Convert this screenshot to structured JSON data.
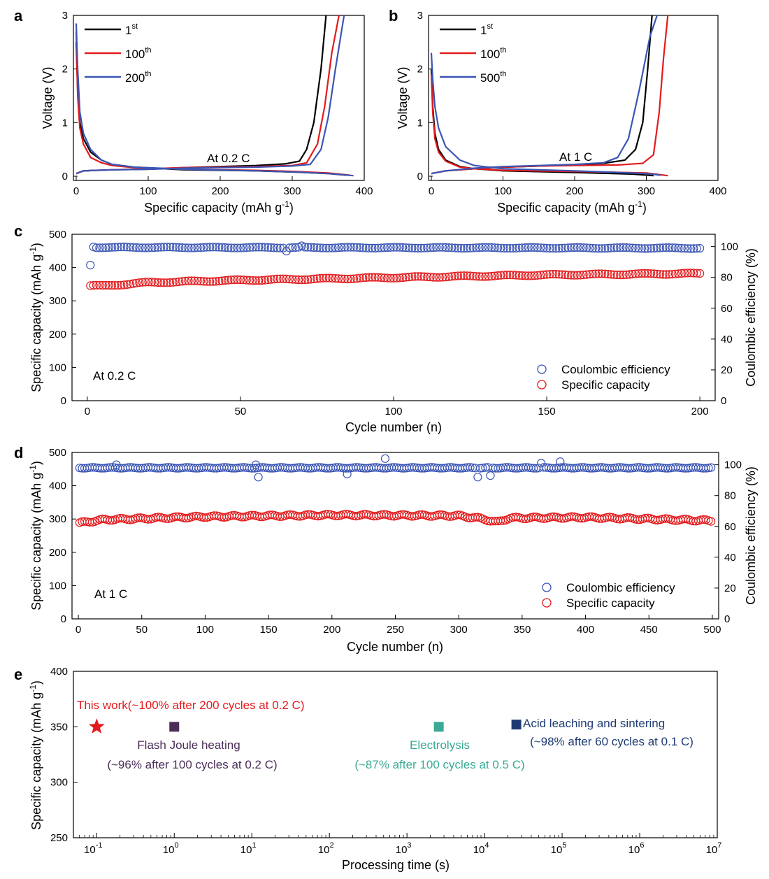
{
  "chart_data": [
    {
      "id": "a",
      "panel_label": "a",
      "type": "line",
      "xlabel": "Specific capacity (mAh g",
      "xlabel_sup": "-1",
      "xlabel_end": ")",
      "ylabel": "Voltage (V)",
      "xlim": [
        0,
        400
      ],
      "ylim": [
        0,
        3
      ],
      "xticks": [
        0,
        100,
        200,
        300,
        400
      ],
      "yticks": [
        0,
        1,
        2,
        3
      ],
      "annotation": "At 0.2 C",
      "series": [
        {
          "name": "1",
          "sup": "st",
          "color": "#000000",
          "discharge": [
            [
              0,
              2.5
            ],
            [
              2,
              1.6
            ],
            [
              5,
              1.0
            ],
            [
              10,
              0.7
            ],
            [
              20,
              0.45
            ],
            [
              35,
              0.3
            ],
            [
              50,
              0.22
            ],
            [
              80,
              0.17
            ],
            [
              150,
              0.12
            ],
            [
              250,
              0.1
            ],
            [
              300,
              0.08
            ],
            [
              350,
              0.05
            ],
            [
              375,
              0.02
            ]
          ],
          "charge": [
            [
              0,
              0.05
            ],
            [
              10,
              0.1
            ],
            [
              50,
              0.12
            ],
            [
              100,
              0.13
            ],
            [
              150,
              0.16
            ],
            [
              200,
              0.18
            ],
            [
              250,
              0.2
            ],
            [
              290,
              0.23
            ],
            [
              310,
              0.28
            ],
            [
              320,
              0.5
            ],
            [
              330,
              1.0
            ],
            [
              340,
              2.0
            ],
            [
              347,
              3.0
            ]
          ]
        },
        {
          "name": "100",
          "sup": "th",
          "color": "#e31a1c",
          "discharge": [
            [
              0,
              2.7
            ],
            [
              2,
              1.5
            ],
            [
              5,
              0.9
            ],
            [
              10,
              0.6
            ],
            [
              20,
              0.35
            ],
            [
              35,
              0.25
            ],
            [
              50,
              0.2
            ],
            [
              80,
              0.16
            ],
            [
              150,
              0.13
            ],
            [
              250,
              0.11
            ],
            [
              300,
              0.09
            ],
            [
              350,
              0.06
            ],
            [
              380,
              0.02
            ]
          ],
          "charge": [
            [
              0,
              0.05
            ],
            [
              10,
              0.1
            ],
            [
              50,
              0.12
            ],
            [
              100,
              0.14
            ],
            [
              150,
              0.16
            ],
            [
              200,
              0.17
            ],
            [
              250,
              0.18
            ],
            [
              300,
              0.2
            ],
            [
              320,
              0.25
            ],
            [
              335,
              0.6
            ],
            [
              345,
              1.3
            ],
            [
              355,
              2.3
            ],
            [
              365,
              3.0
            ]
          ]
        },
        {
          "name": "200",
          "sup": "th",
          "color": "#3b55b4",
          "discharge": [
            [
              0,
              2.85
            ],
            [
              2,
              2.0
            ],
            [
              5,
              1.2
            ],
            [
              10,
              0.8
            ],
            [
              20,
              0.5
            ],
            [
              35,
              0.3
            ],
            [
              50,
              0.22
            ],
            [
              80,
              0.17
            ],
            [
              150,
              0.13
            ],
            [
              250,
              0.1
            ],
            [
              300,
              0.08
            ],
            [
              350,
              0.05
            ],
            [
              385,
              0.01
            ]
          ],
          "charge": [
            [
              0,
              0.05
            ],
            [
              10,
              0.1
            ],
            [
              50,
              0.12
            ],
            [
              100,
              0.13
            ],
            [
              150,
              0.15
            ],
            [
              200,
              0.16
            ],
            [
              250,
              0.17
            ],
            [
              300,
              0.19
            ],
            [
              325,
              0.22
            ],
            [
              340,
              0.5
            ],
            [
              350,
              1.1
            ],
            [
              360,
              2.0
            ],
            [
              372,
              3.0
            ]
          ]
        }
      ]
    },
    {
      "id": "b",
      "panel_label": "b",
      "type": "line",
      "xlabel": "Specific capacity (mAh g",
      "xlabel_sup": "-1",
      "xlabel_end": ")",
      "ylabel": "Voltage (V)",
      "xlim": [
        0,
        400
      ],
      "ylim": [
        0,
        3
      ],
      "xticks": [
        0,
        100,
        200,
        300,
        400
      ],
      "yticks": [
        0,
        1,
        2,
        3
      ],
      "annotation": "At 1 C",
      "series": [
        {
          "name": "1",
          "sup": "st",
          "color": "#000000",
          "discharge": [
            [
              0,
              2.0
            ],
            [
              2,
              1.3
            ],
            [
              5,
              0.8
            ],
            [
              10,
              0.5
            ],
            [
              20,
              0.3
            ],
            [
              40,
              0.18
            ],
            [
              60,
              0.14
            ],
            [
              100,
              0.1
            ],
            [
              200,
              0.07
            ],
            [
              280,
              0.04
            ],
            [
              310,
              0.01
            ]
          ],
          "charge": [
            [
              0,
              0.05
            ],
            [
              20,
              0.1
            ],
            [
              60,
              0.14
            ],
            [
              100,
              0.17
            ],
            [
              150,
              0.19
            ],
            [
              200,
              0.21
            ],
            [
              240,
              0.24
            ],
            [
              270,
              0.3
            ],
            [
              285,
              0.5
            ],
            [
              295,
              1.0
            ],
            [
              302,
              2.0
            ],
            [
              308,
              3.0
            ]
          ]
        },
        {
          "name": "100",
          "sup": "th",
          "color": "#e31a1c",
          "discharge": [
            [
              0,
              1.9
            ],
            [
              2,
              1.2
            ],
            [
              5,
              0.7
            ],
            [
              10,
              0.45
            ],
            [
              20,
              0.28
            ],
            [
              40,
              0.17
            ],
            [
              60,
              0.14
            ],
            [
              100,
              0.11
            ],
            [
              200,
              0.09
            ],
            [
              300,
              0.06
            ],
            [
              330,
              0.01
            ]
          ],
          "charge": [
            [
              0,
              0.05
            ],
            [
              20,
              0.1
            ],
            [
              60,
              0.14
            ],
            [
              100,
              0.17
            ],
            [
              150,
              0.19
            ],
            [
              200,
              0.2
            ],
            [
              260,
              0.21
            ],
            [
              295,
              0.24
            ],
            [
              310,
              0.4
            ],
            [
              318,
              1.2
            ],
            [
              324,
              2.2
            ],
            [
              330,
              3.0
            ]
          ]
        },
        {
          "name": "500",
          "sup": "th",
          "color": "#3b55b4",
          "discharge": [
            [
              0,
              2.3
            ],
            [
              2,
              1.8
            ],
            [
              5,
              1.3
            ],
            [
              10,
              0.9
            ],
            [
              20,
              0.55
            ],
            [
              40,
              0.3
            ],
            [
              60,
              0.2
            ],
            [
              100,
              0.14
            ],
            [
              200,
              0.1
            ],
            [
              300,
              0.05
            ],
            [
              320,
              0.02
            ]
          ],
          "charge": [
            [
              0,
              0.05
            ],
            [
              20,
              0.1
            ],
            [
              60,
              0.15
            ],
            [
              100,
              0.18
            ],
            [
              150,
              0.2
            ],
            [
              200,
              0.22
            ],
            [
              240,
              0.25
            ],
            [
              260,
              0.35
            ],
            [
              275,
              0.7
            ],
            [
              290,
              1.6
            ],
            [
              305,
              2.6
            ],
            [
              315,
              3.0
            ]
          ]
        }
      ]
    },
    {
      "id": "c",
      "panel_label": "c",
      "type": "scatter",
      "xlabel": "Cycle number (n)",
      "ylabel": "Specific capacity (mAh g",
      "ylabel_sup": "-1",
      "ylabel_end": ")",
      "y2label": "Coulombic efficiency (%)",
      "xlim": [
        -5,
        205
      ],
      "ylim": [
        0,
        500
      ],
      "y2lim": [
        0,
        108
      ],
      "xticks": [
        0,
        50,
        100,
        150,
        200
      ],
      "yticks": [
        0,
        100,
        200,
        300,
        400,
        500
      ],
      "y2ticks": [
        0,
        20,
        40,
        60,
        80,
        100
      ],
      "annotation": "At 0.2 C",
      "legend": [
        {
          "label": "Coulombic efficiency",
          "color": "#3b55b4"
        },
        {
          "label": "Specific capacity",
          "color": "#e31a1c"
        }
      ],
      "cycles": 200,
      "capacity_trend": [
        [
          1,
          345
        ],
        [
          5,
          345
        ],
        [
          20,
          355
        ],
        [
          50,
          362
        ],
        [
          100,
          370
        ],
        [
          150,
          378
        ],
        [
          200,
          382
        ]
      ],
      "ce_trend": [
        [
          1,
          88
        ],
        [
          2,
          99.5
        ],
        [
          200,
          99
        ]
      ],
      "ce_outliers": [
        [
          1,
          88
        ],
        [
          2,
          99.8
        ],
        [
          65,
          97
        ],
        [
          70,
          100.5
        ]
      ]
    },
    {
      "id": "d",
      "panel_label": "d",
      "type": "scatter",
      "xlabel": "Cycle number (n)",
      "ylabel": "Specific capacity (mAh g",
      "ylabel_sup": "-1",
      "ylabel_end": ")",
      "y2label": "Coulombic efficiency (%)",
      "xlim": [
        -5,
        505
      ],
      "ylim": [
        0,
        500
      ],
      "y2lim": [
        0,
        108
      ],
      "xticks": [
        0,
        50,
        100,
        150,
        200,
        250,
        300,
        350,
        400,
        450,
        500
      ],
      "yticks": [
        0,
        100,
        200,
        300,
        400,
        500
      ],
      "y2ticks": [
        0,
        20,
        40,
        60,
        80,
        100
      ],
      "annotation": "At 1 C",
      "legend": [
        {
          "label": "Coulombic efficiency",
          "color": "#3b55b4"
        },
        {
          "label": "Specific capacity",
          "color": "#e31a1c"
        }
      ],
      "cycles": 500,
      "capacity_trend": [
        [
          1,
          288
        ],
        [
          20,
          298
        ],
        [
          100,
          307
        ],
        [
          200,
          312
        ],
        [
          300,
          310
        ],
        [
          320,
          300
        ],
        [
          330,
          290
        ],
        [
          340,
          303
        ],
        [
          400,
          305
        ],
        [
          450,
          300
        ],
        [
          500,
          295
        ]
      ],
      "ce_trend": [
        [
          1,
          98
        ],
        [
          500,
          98
        ]
      ],
      "ce_outliers": [
        [
          30,
          100
        ],
        [
          140,
          100
        ],
        [
          142,
          92
        ],
        [
          212,
          94
        ],
        [
          242,
          104
        ],
        [
          315,
          92
        ],
        [
          325,
          93
        ],
        [
          365,
          101
        ],
        [
          380,
          102
        ]
      ]
    },
    {
      "id": "e",
      "panel_label": "e",
      "type": "scatter",
      "xlabel": "Processing time (s)",
      "ylabel": "Specific capacity (mAh g",
      "ylabel_sup": "-1",
      "ylabel_end": ")",
      "xscale": "log",
      "xlim_exp": [
        -1.3,
        7
      ],
      "ylim": [
        250,
        400
      ],
      "xtick_exponents": [
        -1,
        0,
        1,
        2,
        3,
        4,
        5,
        6,
        7
      ],
      "xtick_base": "10",
      "yticks": [
        250,
        300,
        350,
        400
      ],
      "points": [
        {
          "label": "This work(~100% after 200 cycles at 0.2 C)",
          "sublabel": "",
          "x_exp": -1,
          "y": 350,
          "marker": "star",
          "color": "#e31a1c"
        },
        {
          "label": "Flash Joule heating",
          "sublabel": "(~96% after 100 cycles at 0.2 C)",
          "x_exp": 0,
          "y": 350,
          "marker": "square",
          "color": "#4b2e57"
        },
        {
          "label": "Electrolysis",
          "sublabel": "(~87% after 100 cycles at 0.5 C)",
          "x_exp": 3.41,
          "y": 350,
          "marker": "square",
          "color": "#3aaa96"
        },
        {
          "label": "Acid leaching and sintering",
          "sublabel": "(~98% after 60 cycles at 0.1 C)",
          "x_exp": 4.41,
          "y": 352,
          "marker": "square",
          "color": "#1f3b73"
        }
      ]
    }
  ]
}
